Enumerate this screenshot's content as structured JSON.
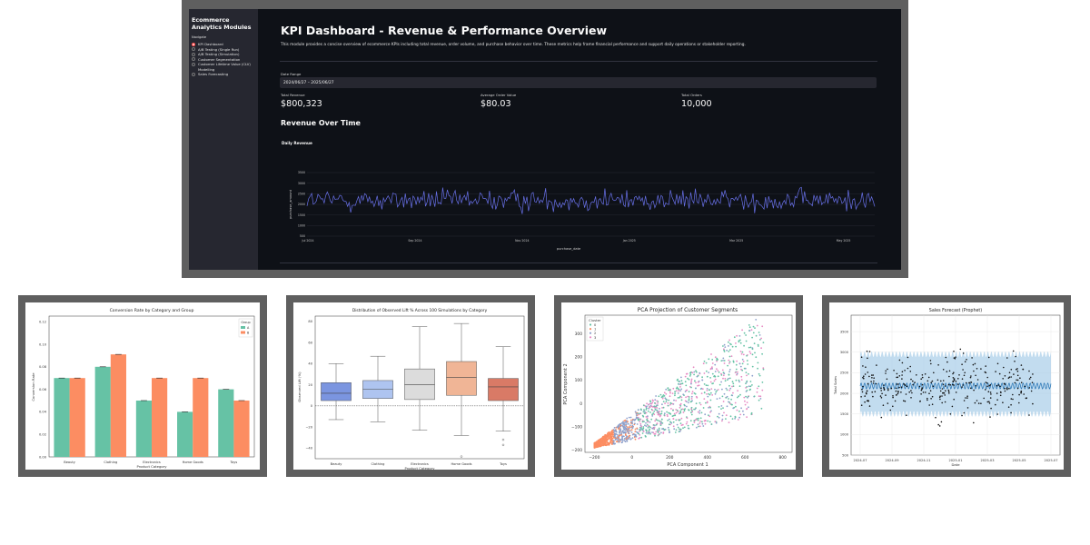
{
  "sidebar": {
    "title": "Ecommerce Analytics Modules",
    "nav_label": "Navigate",
    "items": [
      {
        "label": "KPI Dashboard",
        "selected": true
      },
      {
        "label": "A/B Testing (Single Run)",
        "selected": false
      },
      {
        "label": "A/B Testing (Simulation)",
        "selected": false
      },
      {
        "label": "Customer Segmentation",
        "selected": false
      },
      {
        "label": "Customer Lifetime Value (CLV) Modelling",
        "selected": false
      },
      {
        "label": "Sales Forecasting",
        "selected": false
      }
    ]
  },
  "main": {
    "title": "KPI Dashboard - Revenue & Performance Overview",
    "description": "This module provides a concise overview of ecommerce KPIs including total revenue, order volume, and purchase behavior over time. These metrics help frame financial performance and support daily operations or stakeholder reporting.",
    "date_range_label": "Date Range",
    "date_range_value": "2024/06/27 – 2025/06/27",
    "metrics": [
      {
        "label": "Total Revenue",
        "value": "$800,323"
      },
      {
        "label": "Average Order Value",
        "value": "$80.03"
      },
      {
        "label": "Total Orders",
        "value": "10,000"
      }
    ],
    "section_title": "Revenue Over Time",
    "chart_title": "Daily Revenue"
  },
  "colors": {
    "app_bg": "#0e1117",
    "sidebar_bg": "#262730",
    "accent": "#ff4b4b",
    "revenue_line": "#6870e8",
    "teal": "#66c2a5",
    "orange": "#fc8d62",
    "blue": "#8da0cb",
    "pink": "#e78ac3"
  },
  "chart_data": [
    {
      "type": "line",
      "title": "Daily Revenue",
      "xlabel": "purchase_date",
      "ylabel": "purchase_amount",
      "x_ticks": [
        "Jul 2024",
        "Sep 2024",
        "Nov 2024",
        "Jan 2025",
        "Mar 2025",
        "May 2025"
      ],
      "y_ticks": [
        "500",
        "1000",
        "1500",
        "2000",
        "2500",
        "3000",
        "3500"
      ],
      "ylim": [
        500,
        3500
      ],
      "x_range": [
        "2024-06-27",
        "2025-06-27"
      ],
      "points": 365,
      "series": [
        {
          "values_mean": 2190,
          "values_range": [
            600,
            3100
          ]
        }
      ]
    },
    {
      "type": "bar",
      "title": "Conversion Rate by Category and Group",
      "xlabel": "Product Category",
      "ylabel": "Conversion Rate",
      "categories": [
        "Beauty",
        "Clothing",
        "Electronics",
        "Home Goods",
        "Toys"
      ],
      "legend_title": "Group",
      "legend_position": "top-right",
      "ylim": [
        0,
        0.125
      ],
      "y_ticks": [
        "0.00",
        "0.02",
        "0.04",
        "0.06",
        "0.08",
        "0.10",
        "0.12"
      ],
      "series": [
        {
          "name": "A",
          "values": [
            0.07,
            0.08,
            0.05,
            0.04,
            0.06
          ]
        },
        {
          "name": "B",
          "values": [
            0.07,
            0.091,
            0.07,
            0.07,
            0.05
          ]
        }
      ]
    },
    {
      "type": "box",
      "title": "Distribution of Observed Lift % Across 100 Simulations by Category",
      "xlabel": "Product Category",
      "ylabel": "Observed Lift (%)",
      "categories": [
        "Beauty",
        "Clothing",
        "Electronics",
        "Home Goods",
        "Toys"
      ],
      "ylim": [
        -50,
        85
      ],
      "y_ticks": [
        "−40",
        "−20",
        "0",
        "20",
        "40",
        "60",
        "80"
      ],
      "reference_line": 0,
      "boxes": [
        {
          "whisker_low": -13,
          "q1": 5,
          "median": 12,
          "q3": 22,
          "whisker_high": 40
        },
        {
          "whisker_low": -15,
          "q1": 7,
          "median": 16,
          "q3": 24,
          "whisker_high": 47
        },
        {
          "whisker_low": -23,
          "q1": 6,
          "median": 20,
          "q3": 35,
          "whisker_high": 75
        },
        {
          "whisker_low": -28,
          "q1": 10,
          "median": 27,
          "q3": 42,
          "whisker_high": 78
        },
        {
          "whisker_low": -24,
          "q1": 5,
          "median": 18,
          "q3": 26,
          "whisker_high": 56,
          "outliers": [
            -32,
            -37
          ]
        }
      ],
      "outliers_global": [
        {
          "category": "Home Goods",
          "value": -48
        }
      ]
    },
    {
      "type": "scatter",
      "title": "PCA Projection of Customer Segments",
      "xlabel": "PCA Component 1",
      "ylabel": "PCA Component 2",
      "xlim": [
        -250,
        850
      ],
      "ylim": [
        -210,
        380
      ],
      "x_ticks": [
        "−200",
        "0",
        "200",
        "400",
        "600",
        "800"
      ],
      "y_ticks": [
        "−200",
        "−100",
        "0",
        "100",
        "200",
        "300"
      ],
      "legend_title": "Cluster",
      "legend_position": "top-left",
      "clusters": [
        "0",
        "1",
        "2",
        "3"
      ]
    },
    {
      "type": "line",
      "title": "Sales Forecast (Prophet)",
      "xlabel": "Date",
      "ylabel": "Total Sales",
      "x_ticks": [
        "2024-07",
        "2024-09",
        "2024-11",
        "2025-01",
        "2025-03",
        "2025-05",
        "2025-07"
      ],
      "y_ticks": [
        "500",
        "1000",
        "1500",
        "2000",
        "2500",
        "3000",
        "3500"
      ],
      "ylim": [
        500,
        3900
      ],
      "forecast_mean": 2180,
      "interval": [
        1500,
        2950
      ]
    }
  ]
}
